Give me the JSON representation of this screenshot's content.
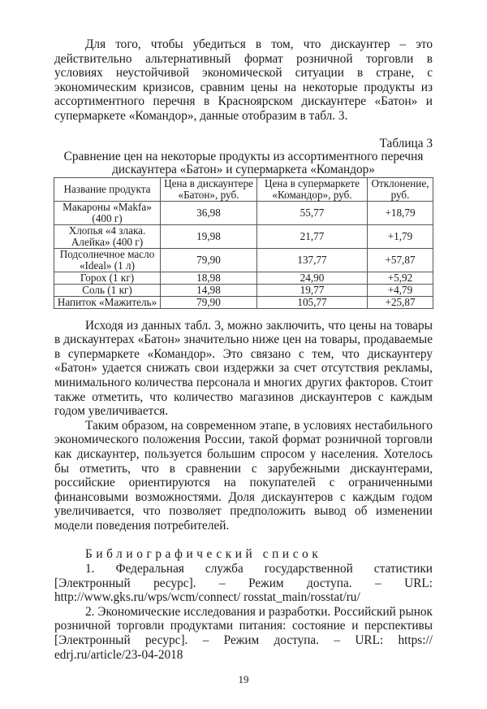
{
  "intro_paragraph": "Для того, чтобы убедиться в том, что дискаунтер – это действительно альтернативный формат розничной торговли в условиях неустойчивой экономической ситуации в стране, с экономическим кризисов, сравним цены на некоторые продукты из ассортиментного перечня в Красноярском дискаунтере «Батон» и супермаркете «Командор», данные отобразим в табл. 3.",
  "table": {
    "label": "Таблица 3",
    "caption": "Сравнение цен на некоторые продукты из ассортиментного перечня дискаунтера «Батон» и супермаркета «Командор»",
    "headers": [
      "Название продукта",
      "Цена в дискаунтере «Батон», руб.",
      "Цена в супермаркете «Командор», руб.",
      "Отклонение, руб."
    ],
    "rows": [
      [
        "Макароны «Makfa» (400 г)",
        "36,98",
        "55,77",
        "+18,79"
      ],
      [
        "Хлопья «4 злака. Алейка» (400 г)",
        "19,98",
        "21,77",
        "+1,79"
      ],
      [
        "Подсолнечное масло «Ideal» (1 л)",
        "79,90",
        "137,77",
        "+57,87"
      ],
      [
        "Горох (1 кг)",
        "18,98",
        "24,90",
        "+5,92"
      ],
      [
        "Соль (1 кг)",
        "14,98",
        "19,77",
        "+4,79"
      ],
      [
        "Напиток «Мажитель»",
        "79,90",
        "105,77",
        "+25,87"
      ]
    ]
  },
  "paragraph_2": "Исходя из данных табл. 3, можно заключить, что цены на товары в дискаунтерах «Батон» значительно ниже цен на товары, продаваемые в супермаркете «Командор». Это связано с тем, что дискаунтеру «Батон» удается снижать свои издержки за счет отсутствия рекламы, минимального количества персонала и многих других факторов. Стоит также отметить, что количество магазинов дискаунтеров с каждым годом увеличивается.",
  "paragraph_3": "Таким образом, на современном этапе, в условиях нестабильного экономического положения России, такой формат розничной торговли как дискаунтер, пользуется большим спросом у населения. Хотелось бы отме­тить, что в сравнении с зарубежными дискаунтерами, российские ориенти­руются на покупателей с ограниченными финансовыми возможностями. Доля дискаунтеров с каждым годом увеличивается, что позволяет предпо­ложить вывод об изменении модели поведения потребителей.",
  "bibliography": {
    "heading": "Библиографический список",
    "items": [
      "1. Федеральная служба государственной статистики [Электронный ресурс]. – Режим доступа. – URL: http://www.gks.ru/wps/wcm/connect/ rosstat_main/rosstat/ru/",
      "2. Экономические исследования и разработки. Российский рынок розничной торговли продуктами питания: состояние и перспективы [Электронный ресурс]. – Режим доступа. – URL: https:// edrj.ru/article/23-04-2018"
    ]
  },
  "page_number": "19"
}
